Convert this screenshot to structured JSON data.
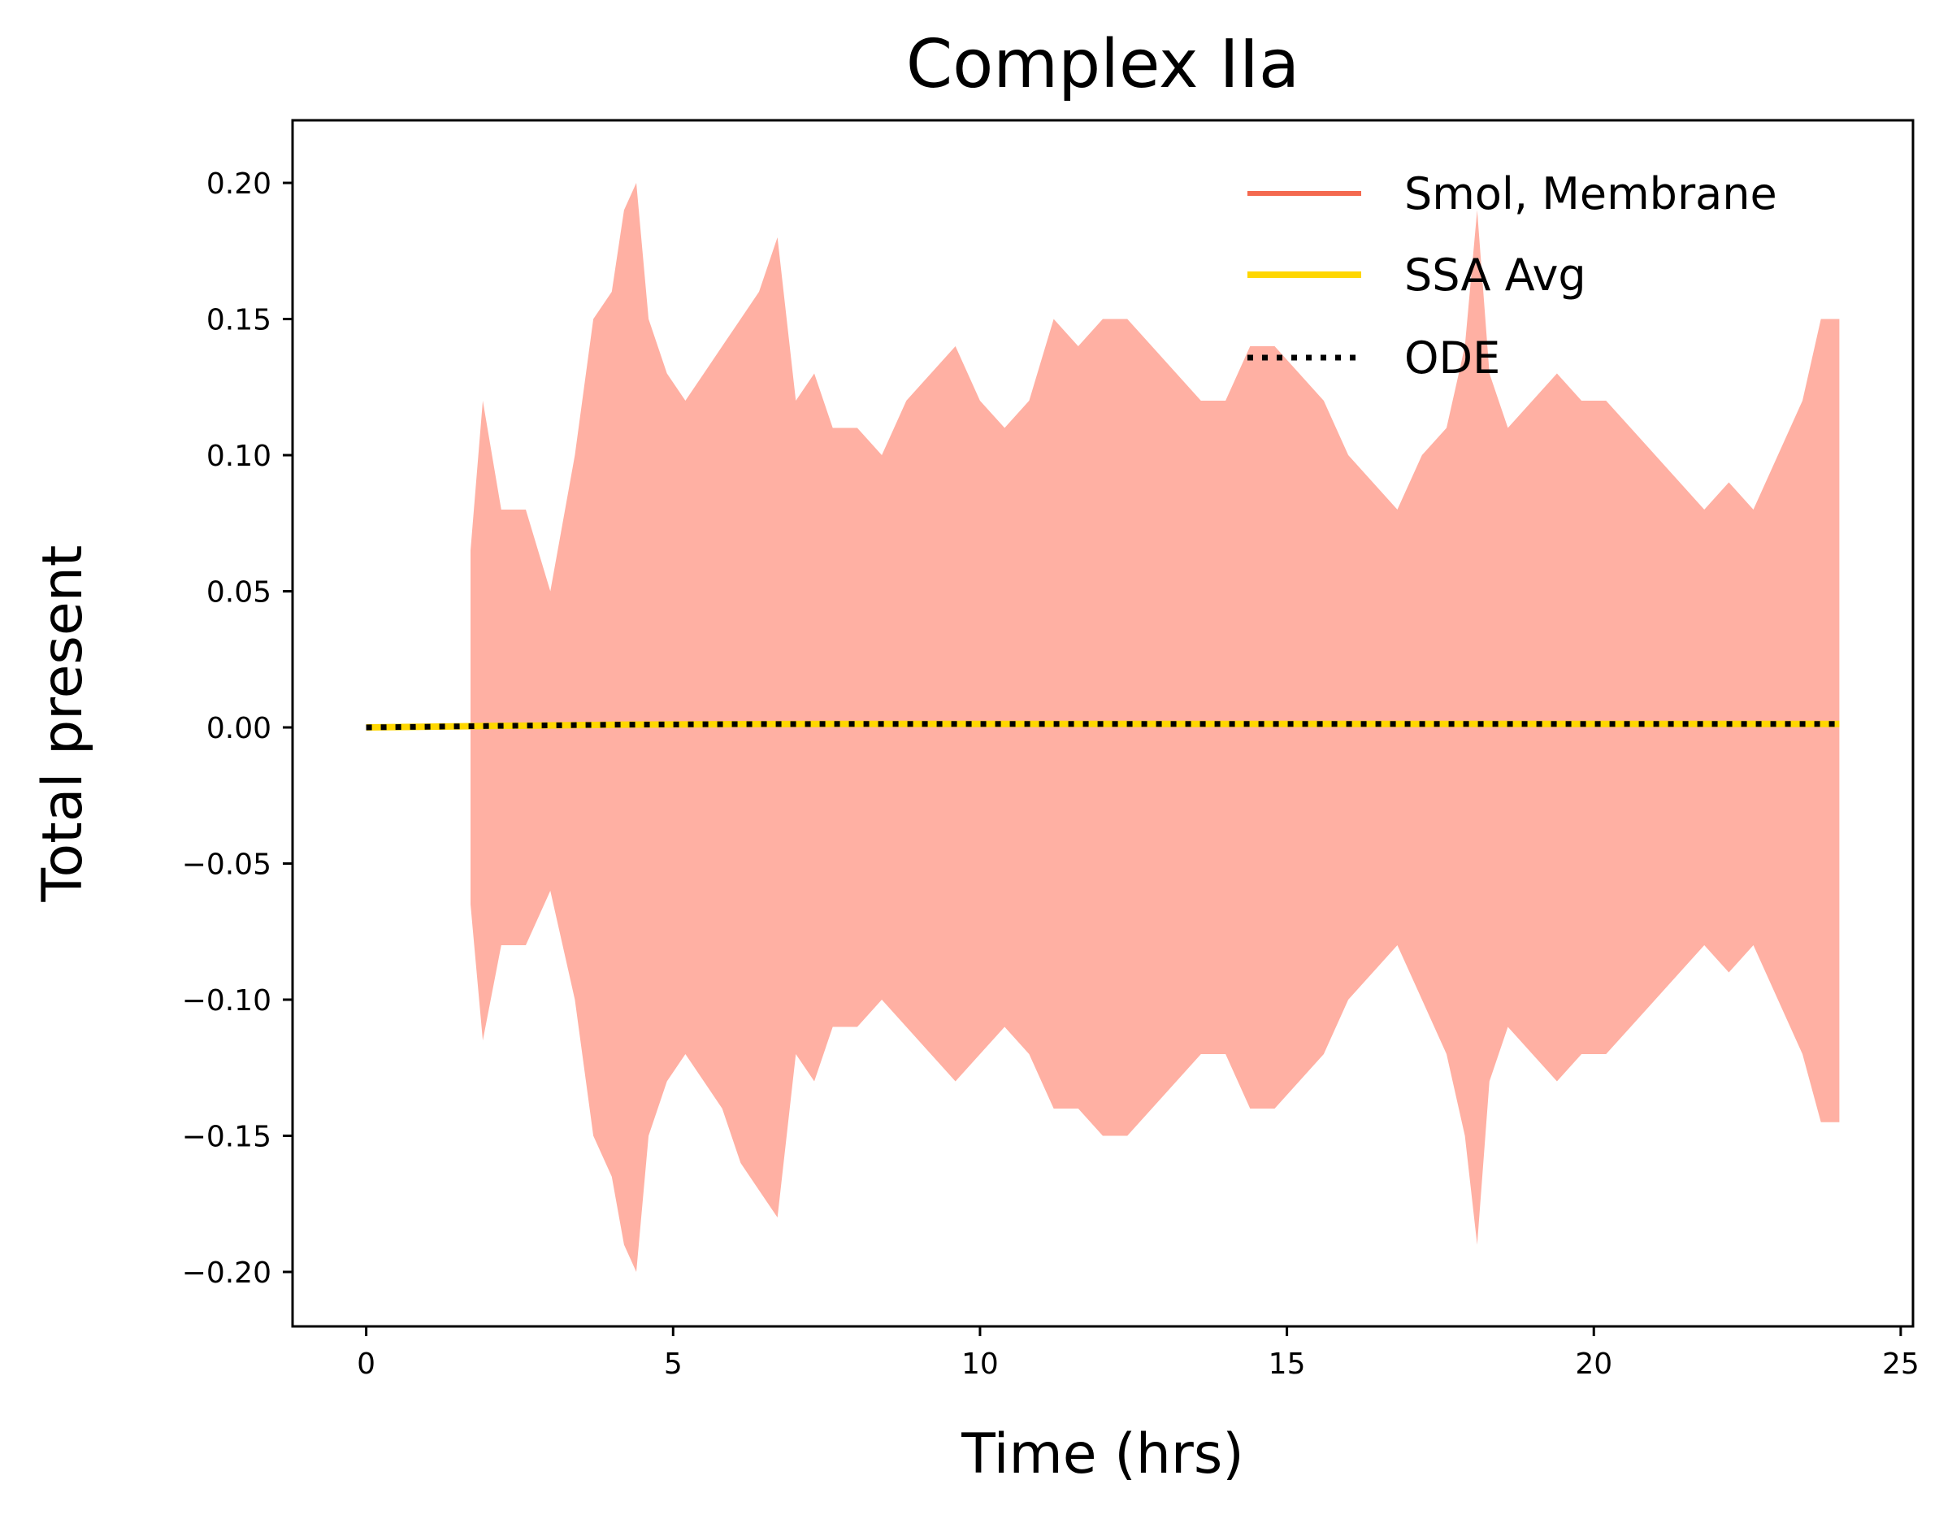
{
  "chart_data": {
    "type": "line",
    "title": "Complex IIa",
    "xlabel": "Time (hrs)",
    "ylabel": "Total present",
    "xlim": [
      -1.2,
      25.2
    ],
    "ylim": [
      -0.22,
      0.223
    ],
    "xticks": [
      0,
      5,
      10,
      15,
      20,
      25
    ],
    "yticks": [
      0.2,
      0.15,
      0.1,
      0.05,
      0.0,
      -0.05,
      -0.1,
      -0.15,
      -0.2
    ],
    "xtick_labels": [
      "0",
      "5",
      "10",
      "15",
      "20",
      "25"
    ],
    "ytick_labels": [
      "0.20",
      "0.15",
      "0.10",
      "0.05",
      "0.00",
      "−0.05",
      "−0.10",
      "−0.15",
      "−0.20"
    ],
    "grid": false,
    "legend_position": "top-right",
    "series": [
      {
        "name": "Smol, Membrane",
        "style": "band",
        "legend_color": "#f4694f",
        "fill_color": "#ffb0a3",
        "x": [
          1.7,
          1.9,
          2.2,
          2.6,
          3.0,
          3.4,
          3.7,
          4.0,
          4.2,
          4.4,
          4.6,
          4.9,
          5.2,
          5.5,
          5.8,
          6.1,
          6.4,
          6.7,
          7.0,
          7.3,
          7.6,
          8.0,
          8.4,
          8.8,
          9.2,
          9.6,
          10.0,
          10.4,
          10.8,
          11.2,
          11.6,
          12.0,
          12.4,
          12.8,
          13.2,
          13.6,
          14.0,
          14.4,
          14.8,
          15.2,
          15.6,
          16.0,
          16.4,
          16.8,
          17.2,
          17.6,
          17.9,
          18.1,
          18.3,
          18.6,
          19.0,
          19.4,
          19.8,
          20.2,
          20.6,
          21.0,
          21.4,
          21.8,
          22.2,
          22.6,
          23.0,
          23.4,
          23.7,
          24.0
        ],
        "upper": [
          0.065,
          0.12,
          0.08,
          0.08,
          0.05,
          0.1,
          0.15,
          0.16,
          0.19,
          0.2,
          0.15,
          0.13,
          0.12,
          0.13,
          0.14,
          0.15,
          0.16,
          0.18,
          0.12,
          0.13,
          0.11,
          0.11,
          0.1,
          0.12,
          0.13,
          0.14,
          0.12,
          0.11,
          0.12,
          0.15,
          0.14,
          0.15,
          0.15,
          0.14,
          0.13,
          0.12,
          0.12,
          0.14,
          0.14,
          0.13,
          0.12,
          0.1,
          0.09,
          0.08,
          0.1,
          0.11,
          0.14,
          0.19,
          0.13,
          0.11,
          0.12,
          0.13,
          0.12,
          0.12,
          0.11,
          0.1,
          0.09,
          0.08,
          0.09,
          0.08,
          0.1,
          0.12,
          0.15,
          0.15
        ],
        "lower": [
          -0.065,
          -0.115,
          -0.08,
          -0.08,
          -0.06,
          -0.1,
          -0.15,
          -0.165,
          -0.19,
          -0.2,
          -0.15,
          -0.13,
          -0.12,
          -0.13,
          -0.14,
          -0.16,
          -0.17,
          -0.18,
          -0.12,
          -0.13,
          -0.11,
          -0.11,
          -0.1,
          -0.11,
          -0.12,
          -0.13,
          -0.12,
          -0.11,
          -0.12,
          -0.14,
          -0.14,
          -0.15,
          -0.15,
          -0.14,
          -0.13,
          -0.12,
          -0.12,
          -0.14,
          -0.14,
          -0.13,
          -0.12,
          -0.1,
          -0.09,
          -0.08,
          -0.1,
          -0.12,
          -0.15,
          -0.19,
          -0.13,
          -0.11,
          -0.12,
          -0.13,
          -0.12,
          -0.12,
          -0.11,
          -0.1,
          -0.09,
          -0.08,
          -0.09,
          -0.08,
          -0.1,
          -0.12,
          -0.145,
          -0.145
        ]
      },
      {
        "name": "SSA Avg",
        "style": "solid",
        "color": "#ffd700",
        "x": [
          0,
          2,
          4,
          6,
          8,
          10,
          12,
          14,
          16,
          18,
          20,
          22,
          24
        ],
        "y": [
          0.0,
          0.0005,
          0.001,
          0.0012,
          0.0013,
          0.0013,
          0.0013,
          0.0013,
          0.0013,
          0.0013,
          0.0013,
          0.0013,
          0.0013
        ]
      },
      {
        "name": "ODE",
        "style": "dotted",
        "color": "#000000",
        "x": [
          0,
          2,
          4,
          6,
          8,
          10,
          12,
          14,
          16,
          18,
          20,
          22,
          24
        ],
        "y": [
          0.0,
          0.0005,
          0.001,
          0.0012,
          0.0013,
          0.0013,
          0.0013,
          0.0013,
          0.0013,
          0.0013,
          0.0013,
          0.0013,
          0.0013
        ]
      }
    ]
  }
}
